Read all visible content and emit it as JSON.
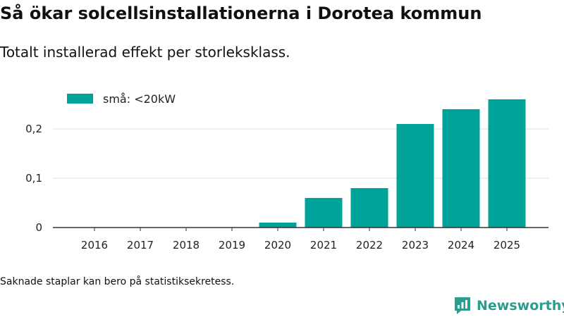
{
  "header": {
    "title": "Så ökar solcellsinstallationerna i Dorotea kommun",
    "subtitle": "Totalt installerad effekt per storleksklass."
  },
  "chart_data": {
    "type": "bar",
    "title": "Så ökar solcellsinstallationerna i Dorotea kommun",
    "subtitle": "Totalt installerad effekt per storleksklass.",
    "xlabel": "",
    "ylabel": "",
    "categories": [
      "2016",
      "2017",
      "2018",
      "2019",
      "2020",
      "2021",
      "2022",
      "2023",
      "2024",
      "2025"
    ],
    "series": [
      {
        "name": "små: <20kW",
        "color": "#00a39a",
        "values": [
          0,
          0,
          0,
          0,
          0.01,
          0.06,
          0.08,
          0.21,
          0.24,
          0.26
        ]
      }
    ],
    "ylim": [
      0,
      0.26
    ],
    "yticks": [
      0,
      0.1,
      0.2
    ],
    "ytick_labels": [
      "0",
      "0,1",
      "0,2"
    ],
    "grid": "horizontal",
    "legend_position": "top-left"
  },
  "footer": {
    "note": "Saknade staplar kan bero på statistiksekretess.",
    "brand_name": "Newsworthy",
    "brand_icon": "newsworthy-logo-icon",
    "brand_color": "#2a9d8f"
  }
}
